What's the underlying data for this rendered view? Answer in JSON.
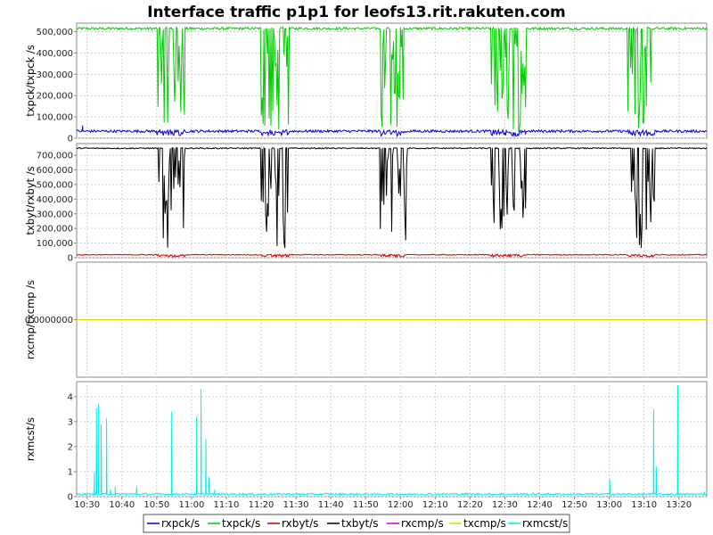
{
  "chart_data": {
    "type": "line",
    "title": "Interface traffic p1p1 for leofs13.rit.rakuten.com",
    "x_ticks": [
      "10:30",
      "10:40",
      "10:50",
      "11:00",
      "11:10",
      "11:20",
      "11:30",
      "11:40",
      "11:50",
      "12:00",
      "12:10",
      "12:20",
      "12:30",
      "12:40",
      "12:50",
      "13:00",
      "13:10",
      "13:20"
    ],
    "x_range": [
      "10:27",
      "13:28"
    ],
    "grid": true,
    "legend_position": "bottom",
    "panels": [
      {
        "ylabel": "txpck/txpck /s",
        "ylim": [
          0,
          540000
        ],
        "y_ticks": [
          "0",
          "100,000",
          "200,000",
          "300,000",
          "400,000",
          "500,000"
        ],
        "y_tick_values": [
          0,
          100000,
          200000,
          300000,
          400000,
          500000
        ],
        "series": [
          {
            "name": "txpck/s",
            "color": "#00cc00",
            "baseline": 515000,
            "noise": 6000,
            "dips": [
              [
                "10:54",
                [
                  70000,
                  480000
                ],
                40
              ],
              [
                "11:24",
                [
                  40000,
                  480000
                ],
                40
              ],
              [
                "11:58",
                [
                  50000,
                  480000
                ],
                40
              ],
              [
                "12:31",
                [
                  30000,
                  480000
                ],
                50
              ],
              [
                "13:09",
                [
                  40000,
                  480000
                ],
                40
              ]
            ]
          },
          {
            "name": "rxpck/s",
            "color": "#0000dd",
            "baseline": 33000,
            "noise": 6000,
            "spikes": [
              [
                "10:28",
                60000
              ]
            ],
            "dips": [
              [
                "10:54",
                [
                  10000,
                  30000
                ],
                40
              ],
              [
                "11:24",
                [
                  10000,
                  30000
                ],
                40
              ],
              [
                "11:58",
                [
                  10000,
                  30000
                ],
                40
              ],
              [
                "12:31",
                [
                  10000,
                  30000
                ],
                50
              ],
              [
                "13:09",
                [
                  10000,
                  30000
                ],
                40
              ]
            ]
          }
        ]
      },
      {
        "ylabel": "txbyt/rxbyt /s",
        "ylim": [
          0,
          780000
        ],
        "y_ticks": [
          "0",
          "100,000",
          "200,000",
          "300,000",
          "400,000",
          "500,000",
          "600,000",
          "700,000"
        ],
        "y_tick_values": [
          0,
          100000,
          200000,
          300000,
          400000,
          500000,
          600000,
          700000
        ],
        "series": [
          {
            "name": "txbyt/s",
            "color": "#000000",
            "baseline": 748000,
            "noise": 4000,
            "dips": [
              [
                "10:54",
                [
                  60000,
                  700000
                ],
                40
              ],
              [
                "11:24",
                [
                  20000,
                  700000
                ],
                40
              ],
              [
                "11:58",
                [
                  30000,
                  700000
                ],
                40
              ],
              [
                "12:31",
                [
                  10000,
                  700000
                ],
                50
              ],
              [
                "13:09",
                [
                  20000,
                  700000
                ],
                40
              ]
            ]
          },
          {
            "name": "rxbyt/s",
            "color": "#cc0000",
            "baseline": 20000,
            "noise": 3000,
            "dips": [
              [
                "10:54",
                [
                  5000,
                  15000
                ],
                40
              ],
              [
                "11:24",
                [
                  5000,
                  15000
                ],
                40
              ],
              [
                "11:58",
                [
                  5000,
                  15000
                ],
                40
              ],
              [
                "12:31",
                [
                  5000,
                  15000
                ],
                50
              ],
              [
                "13:09",
                [
                  5000,
                  15000
                ],
                40
              ]
            ]
          }
        ]
      },
      {
        "ylabel": "rxcmp/txcmp /s",
        "ylim": [
          -1,
          1
        ],
        "y_ticks": [
          "0.0000000"
        ],
        "y_tick_values": [
          0
        ],
        "series": [
          {
            "name": "rxcmp/s",
            "color": "#cc00cc",
            "baseline": 0,
            "noise": 0
          },
          {
            "name": "txcmp/s",
            "color": "#dddd00",
            "baseline": 0,
            "noise": 0
          }
        ]
      },
      {
        "ylabel": "rxmcst/s",
        "ylim": [
          0,
          4.6
        ],
        "y_ticks": [
          "0",
          "1",
          "2",
          "3",
          "4"
        ],
        "y_tick_values": [
          0,
          1,
          2,
          3,
          4
        ],
        "series": [
          {
            "name": "rxmcst/s",
            "color": "#00eeee",
            "baseline": 0.1,
            "noise": 0.04,
            "spikes": [
              [
                "10:32",
                3.55
              ],
              [
                "10:33",
                3.7
              ],
              [
                "10:34",
                2.9
              ],
              [
                "10:35",
                3.15
              ],
              [
                "10:32",
                1.0
              ],
              [
                "10:36",
                0.3
              ],
              [
                "10:38",
                0.4
              ],
              [
                "10:44",
                0.4
              ],
              [
                "10:54",
                3.4
              ],
              [
                "11:01",
                3.2
              ],
              [
                "11:02",
                4.3
              ],
              [
                "11:04",
                2.3
              ],
              [
                "11:05",
                0.8
              ],
              [
                "11:06",
                0.3
              ],
              [
                "13:00",
                0.7
              ],
              [
                "13:12",
                3.5
              ],
              [
                "13:13",
                1.2
              ],
              [
                "13:19",
                4.45
              ],
              [
                "13:27",
                0.2
              ]
            ]
          }
        ]
      }
    ],
    "legend": [
      {
        "name": "rxpck/s",
        "color": "#0000dd"
      },
      {
        "name": "txpck/s",
        "color": "#00cc00"
      },
      {
        "name": "rxbyt/s",
        "color": "#cc0000"
      },
      {
        "name": "txbyt/s",
        "color": "#000000"
      },
      {
        "name": "rxcmp/s",
        "color": "#cc00cc"
      },
      {
        "name": "txcmp/s",
        "color": "#dddd00"
      },
      {
        "name": "rxmcst/s",
        "color": "#00eeee"
      }
    ]
  }
}
